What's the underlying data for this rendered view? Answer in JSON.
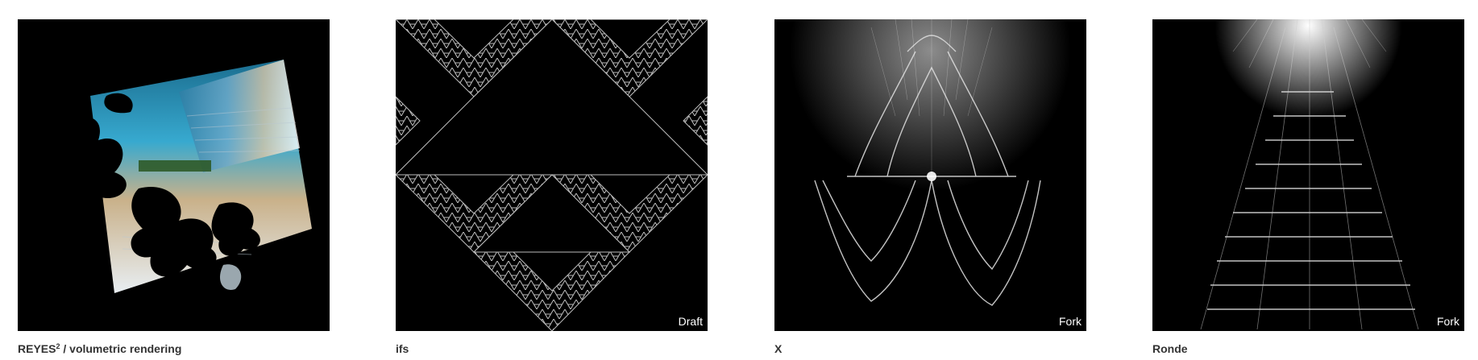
{
  "gallery": {
    "items": [
      {
        "title": "REYES",
        "title_sup": "2",
        "title_rest": " / volumetric rendering",
        "badge": ""
      },
      {
        "title": "ifs",
        "badge": "Draft"
      },
      {
        "title": "X",
        "badge": "Fork"
      },
      {
        "title": "Ronde",
        "badge": "Fork"
      }
    ]
  },
  "colors": {
    "thumb_background": "#000000",
    "caption_text": "#333333",
    "badge_background": "#000000",
    "badge_text": "#ffffff"
  }
}
